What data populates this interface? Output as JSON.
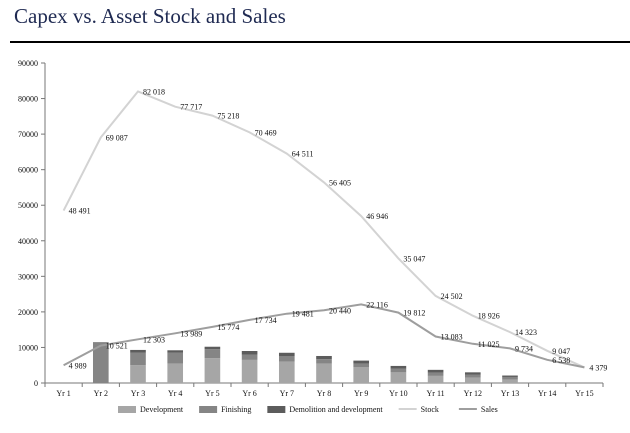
{
  "page": {
    "title": "Capex vs. Asset Stock and Sales"
  },
  "chart_data": {
    "type": "bar",
    "title": "Capex vs. Asset Stock and Sales",
    "xlabel": "",
    "ylabel": "",
    "ylim": [
      0,
      90000
    ],
    "yticks": [
      "0",
      "10000",
      "20000",
      "30000",
      "40000",
      "50000",
      "60000",
      "70000",
      "80000",
      "90000"
    ],
    "yticks_values": [
      0,
      10000,
      20000,
      30000,
      40000,
      50000,
      60000,
      70000,
      80000,
      90000
    ],
    "categories": [
      "Yr 1",
      "Yr 2",
      "Yr 3",
      "Yr 4",
      "Yr 5",
      "Yr 6",
      "Yr 7",
      "Yr 8",
      "Yr 9",
      "Yr 10",
      "Yr 11",
      "Yr 12",
      "Yr 13",
      "Yr 14",
      "Yr 15"
    ],
    "legend_position": "bottom",
    "bar_series": [
      {
        "name": "Development",
        "color": "#a6a6a6",
        "values": [
          0,
          0,
          5000,
          5500,
          7000,
          6500,
          6000,
          5500,
          4500,
          3000,
          2000,
          1500,
          1000,
          0,
          0
        ]
      },
      {
        "name": "Finishing",
        "color": "#858585",
        "values": [
          0,
          11500,
          3500,
          3000,
          2500,
          1500,
          1500,
          1200,
          1000,
          1000,
          900,
          800,
          700,
          0,
          0
        ]
      },
      {
        "name": "Demolition and development",
        "color": "#5c5c5c",
        "values": [
          0,
          0,
          800,
          700,
          700,
          1000,
          1000,
          900,
          800,
          800,
          800,
          700,
          400,
          0,
          0
        ]
      }
    ],
    "line_series": [
      {
        "name": "Stock",
        "color": "#d3d3d3",
        "values": [
          48491,
          69087,
          82018,
          77717,
          75218,
          70469,
          64511,
          56405,
          46946,
          35047,
          24502,
          18926,
          14323,
          9047,
          4379
        ],
        "labels": [
          "48 491",
          "69 087",
          "82 018",
          "77 717",
          "75 218",
          "70 469",
          "64 511",
          "56 405",
          "46 946",
          "35 047",
          "24 502",
          "18 926",
          "14 323",
          "9 047",
          "4 379"
        ]
      },
      {
        "name": "Sales",
        "color": "#9e9e9e",
        "values": [
          4989,
          10521,
          12303,
          13989,
          15774,
          17734,
          19481,
          20440,
          22116,
          19812,
          13083,
          11025,
          9734,
          6538,
          4379
        ],
        "labels": [
          "4 989",
          "10 521",
          "12 303",
          "13 989",
          "15 774",
          "17 734",
          "19 481",
          "20 440",
          "22 116",
          "19 812",
          "13 083",
          "11 025",
          "9 734",
          "6 538",
          ""
        ]
      }
    ]
  }
}
